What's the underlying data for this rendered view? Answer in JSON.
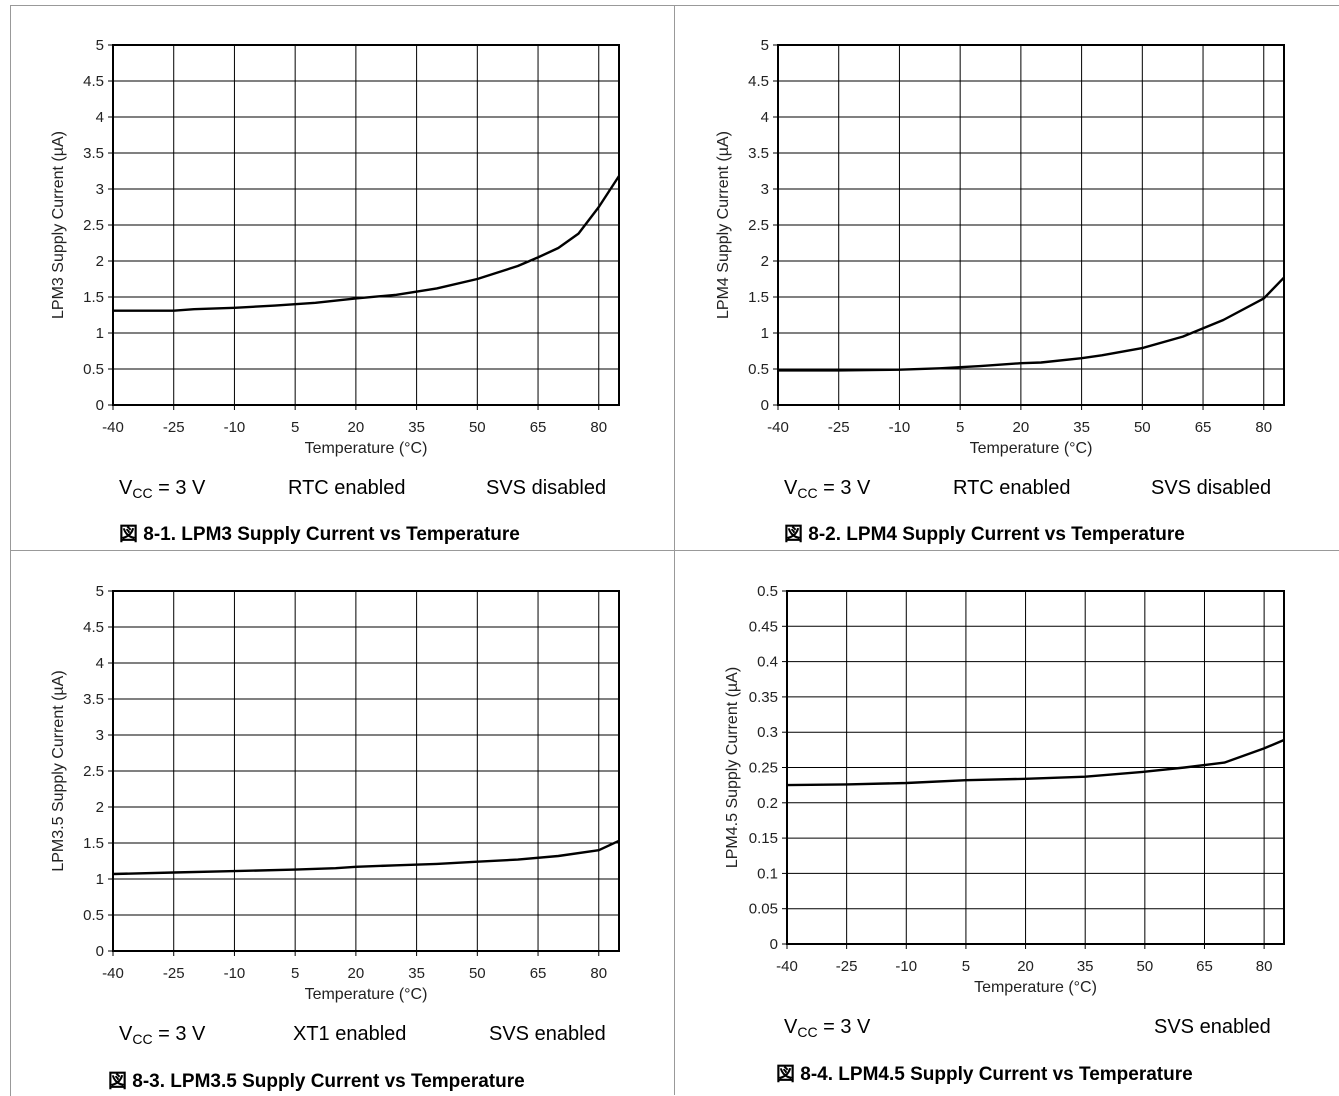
{
  "charts": [
    {
      "caption": "図 8-1. LPM3 Supply Current vs Temperature",
      "conditions": [
        {
          "main": "V",
          "sub": "CC",
          "rest": " = 3 V"
        },
        {
          "main": "RTC enabled"
        },
        {
          "main": "SVS disabled"
        }
      ],
      "chart_data": {
        "type": "line",
        "xlabel": "Temperature (°C)",
        "ylabel": "LPM3 Supply Current (µA)",
        "xlim": [
          -40,
          85
        ],
        "ylim": [
          0,
          5
        ],
        "xticks": [
          "-40",
          "-25",
          "-10",
          "5",
          "20",
          "35",
          "50",
          "65",
          "80"
        ],
        "yticks": [
          "0",
          "0.5",
          "1",
          "1.5",
          "2",
          "2.5",
          "3",
          "3.5",
          "4",
          "4.5",
          "5"
        ],
        "grid": true,
        "series": [
          {
            "x": [
              -40,
              -30,
              -25,
              -20,
              -10,
              0,
              5,
              10,
              20,
              30,
              40,
              50,
              60,
              65,
              70,
              75,
              80,
              85
            ],
            "values": [
              1.31,
              1.31,
              1.31,
              1.33,
              1.35,
              1.38,
              1.4,
              1.42,
              1.48,
              1.53,
              1.62,
              1.75,
              1.93,
              2.05,
              2.18,
              2.38,
              2.75,
              3.18
            ]
          }
        ]
      }
    },
    {
      "caption": "図 8-2. LPM4 Supply Current vs Temperature",
      "conditions": [
        {
          "main": "V",
          "sub": "CC",
          "rest": " = 3 V"
        },
        {
          "main": "RTC enabled"
        },
        {
          "main": "SVS disabled"
        }
      ],
      "chart_data": {
        "type": "line",
        "xlabel": "Temperature (°C)",
        "ylabel": "LPM4 Supply Current (µA)",
        "xlim": [
          -40,
          85
        ],
        "ylim": [
          0,
          5
        ],
        "xticks": [
          "-40",
          "-25",
          "-10",
          "5",
          "20",
          "35",
          "50",
          "65",
          "80"
        ],
        "yticks": [
          "0",
          "0.5",
          "1",
          "1.5",
          "2",
          "2.5",
          "3",
          "3.5",
          "4",
          "4.5",
          "5"
        ],
        "grid": true,
        "series": [
          {
            "x": [
              -40,
              -25,
              -10,
              0,
              10,
              20,
              25,
              35,
              40,
              50,
              60,
              70,
              80,
              85
            ],
            "values": [
              0.48,
              0.48,
              0.49,
              0.51,
              0.54,
              0.58,
              0.59,
              0.65,
              0.69,
              0.79,
              0.95,
              1.18,
              1.48,
              1.77
            ]
          }
        ]
      }
    },
    {
      "caption": "図 8-3. LPM3.5 Supply Current vs Temperature",
      "conditions": [
        {
          "main": "V",
          "sub": "CC",
          "rest": " = 3 V"
        },
        {
          "main": "XT1 enabled"
        },
        {
          "main": "SVS enabled"
        }
      ],
      "chart_data": {
        "type": "line",
        "xlabel": "Temperature (°C)",
        "ylabel": "LPM3.5 Supply Current (µA)",
        "xlim": [
          -40,
          85
        ],
        "ylim": [
          0,
          5
        ],
        "xticks": [
          "-40",
          "-25",
          "-10",
          "5",
          "20",
          "35",
          "50",
          "65",
          "80"
        ],
        "yticks": [
          "0",
          "0.5",
          "1",
          "1.5",
          "2",
          "2.5",
          "3",
          "3.5",
          "4",
          "4.5",
          "5"
        ],
        "grid": true,
        "series": [
          {
            "x": [
              -40,
              -25,
              -10,
              5,
              15,
              20,
              30,
              40,
              50,
              60,
              70,
              80,
              85
            ],
            "values": [
              1.07,
              1.09,
              1.11,
              1.13,
              1.15,
              1.17,
              1.19,
              1.21,
              1.24,
              1.27,
              1.32,
              1.4,
              1.53
            ]
          }
        ]
      }
    },
    {
      "caption": "図 8-4. LPM4.5 Supply Current vs Temperature",
      "conditions": [
        {
          "main": "V",
          "sub": "CC",
          "rest": " = 3 V"
        },
        {
          "main": ""
        },
        {
          "main": "SVS enabled"
        }
      ],
      "chart_data": {
        "type": "line",
        "xlabel": "Temperature (°C)",
        "ylabel": "LPM4.5 Supply Current (µA)",
        "xlim": [
          -40,
          85
        ],
        "ylim": [
          0,
          0.5
        ],
        "xticks": [
          "-40",
          "-25",
          "-10",
          "5",
          "20",
          "35",
          "50",
          "65",
          "80"
        ],
        "yticks": [
          "0",
          "0.05",
          "0.1",
          "0.15",
          "0.2",
          "0.25",
          "0.3",
          "0.35",
          "0.4",
          "0.45",
          "0.5"
        ],
        "grid": true,
        "series": [
          {
            "x": [
              -40,
              -25,
              -10,
              5,
              20,
              35,
              50,
              60,
              70,
              80,
              85
            ],
            "values": [
              0.225,
              0.226,
              0.228,
              0.232,
              0.234,
              0.237,
              0.244,
              0.25,
              0.257,
              0.277,
              0.289
            ]
          }
        ]
      }
    }
  ]
}
